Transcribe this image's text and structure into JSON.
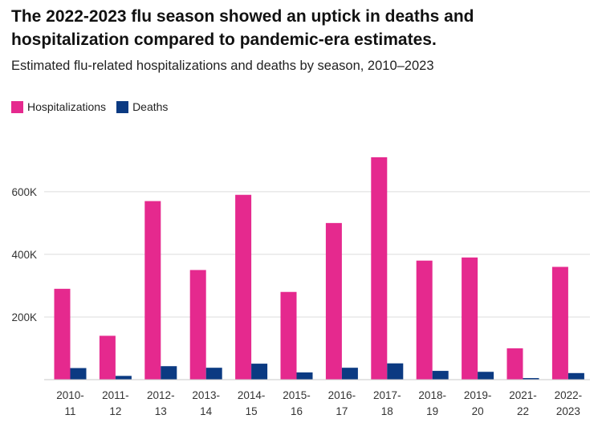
{
  "chart_data": {
    "type": "bar",
    "title": "The 2022-2023 flu season showed an uptick in deaths and hospitalization compared to pandemic-era estimates.",
    "subtitle": "Estimated flu-related hospitalizations and deaths by season, 2010–2023",
    "categories": [
      [
        "2010-",
        "11"
      ],
      [
        "2011-",
        "12"
      ],
      [
        "2012-",
        "13"
      ],
      [
        "2013-",
        "14"
      ],
      [
        "2014-",
        "15"
      ],
      [
        "2015-",
        "16"
      ],
      [
        "2016-",
        "17"
      ],
      [
        "2017-",
        "18"
      ],
      [
        "2018-",
        "19"
      ],
      [
        "2019-",
        "20"
      ],
      [
        "2021-",
        "22"
      ],
      [
        "2022-",
        "2023"
      ]
    ],
    "series": [
      {
        "name": "Hospitalizations",
        "color": "#E5298E",
        "values": [
          290000,
          140000,
          570000,
          350000,
          590000,
          280000,
          500000,
          710000,
          380000,
          390000,
          100000,
          360000
        ]
      },
      {
        "name": "Deaths",
        "color": "#0B3A82",
        "values": [
          37000,
          12000,
          43000,
          38000,
          51000,
          23000,
          38000,
          52000,
          28000,
          25000,
          5000,
          21000
        ]
      }
    ],
    "yticks": [
      200000,
      400000,
      600000
    ],
    "ytick_labels": [
      "200K",
      "400K",
      "600K"
    ],
    "ylim": [
      0,
      720000
    ],
    "grid": true,
    "legend_position": "top-left",
    "xlabel": "",
    "ylabel": ""
  }
}
